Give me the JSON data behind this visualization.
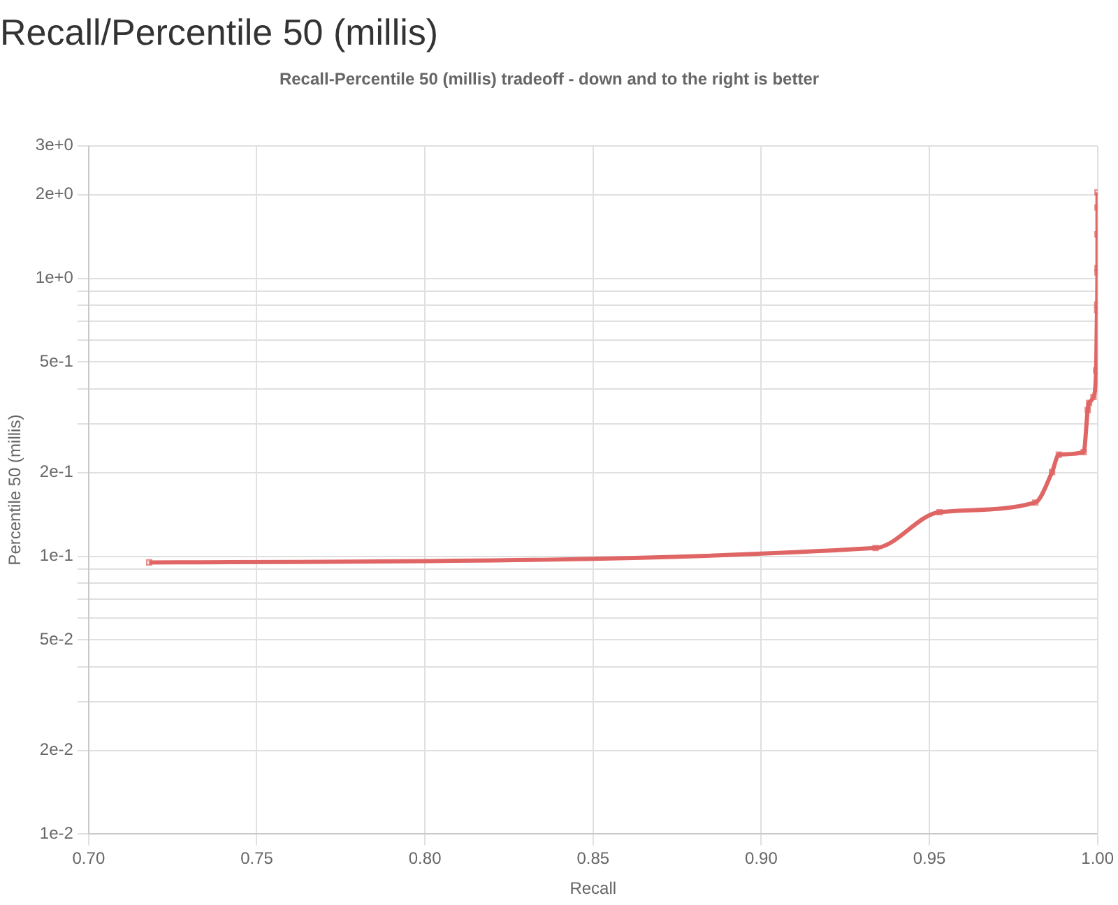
{
  "chart_data": {
    "type": "line",
    "title": "Recall/Percentile 50 (millis)",
    "subtitle": "Recall-Percentile 50 (millis) tradeoff - down and to the right is better",
    "xlabel": "Recall",
    "ylabel": "Percentile 50 (millis)",
    "log": "y",
    "grid": true,
    "marker": "square",
    "line_style": "solid",
    "xlim": [
      0.7,
      1.0
    ],
    "xticks": [
      {
        "value": 0.7,
        "label": "0.70"
      },
      {
        "value": 0.75,
        "label": "0.75"
      },
      {
        "value": 0.8,
        "label": "0.80"
      },
      {
        "value": 0.85,
        "label": "0.85"
      },
      {
        "value": 0.9,
        "label": "0.90"
      },
      {
        "value": 0.95,
        "label": "0.95"
      },
      {
        "value": 1.0,
        "label": "1.00"
      }
    ],
    "ylim": [
      0.01,
      3
    ],
    "yticks": [
      {
        "value": 0.01,
        "label": "1e-2"
      },
      {
        "value": 0.02,
        "label": "2e-2"
      },
      {
        "value": 0.03,
        "label": null
      },
      {
        "value": 0.04,
        "label": null
      },
      {
        "value": 0.05,
        "label": "5e-2"
      },
      {
        "value": 0.06,
        "label": null
      },
      {
        "value": 0.07,
        "label": null
      },
      {
        "value": 0.08,
        "label": null
      },
      {
        "value": 0.09,
        "label": null
      },
      {
        "value": 0.1,
        "label": "1e-1"
      },
      {
        "value": 0.2,
        "label": "2e-1"
      },
      {
        "value": 0.3,
        "label": null
      },
      {
        "value": 0.4,
        "label": null
      },
      {
        "value": 0.5,
        "label": "5e-1"
      },
      {
        "value": 0.6,
        "label": null
      },
      {
        "value": 0.7,
        "label": null
      },
      {
        "value": 0.8,
        "label": null
      },
      {
        "value": 0.9,
        "label": null
      },
      {
        "value": 1,
        "label": "1e+0"
      },
      {
        "value": 2,
        "label": "2e+0"
      },
      {
        "value": 3,
        "label": "3e+0"
      }
    ],
    "x": [
      0.718,
      0.934,
      0.953,
      0.9815,
      0.9865,
      0.9885,
      0.9959,
      0.9971,
      0.9975,
      0.9988,
      0.9996,
      0.9999,
      0.9999,
      1.0,
      1.0,
      1.0,
      1.0,
      1.0
    ],
    "series": [
      {
        "color": "#e06666",
        "values": [
          0.095,
          0.107,
          0.144,
          0.156,
          0.201,
          0.232,
          0.237,
          0.336,
          0.356,
          0.374,
          0.466,
          0.769,
          0.805,
          1.05,
          1.09,
          1.44,
          1.8,
          2.04
        ]
      }
    ]
  }
}
